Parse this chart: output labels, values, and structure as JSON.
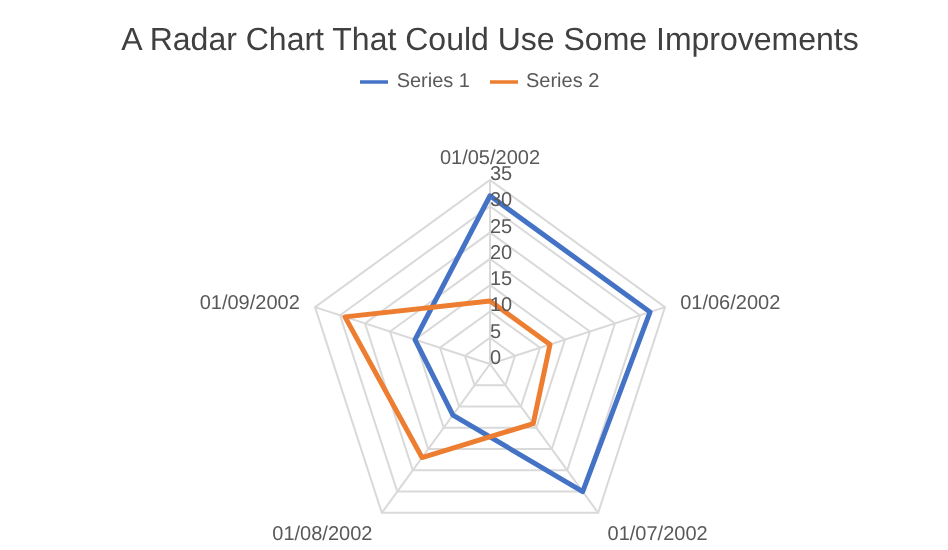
{
  "chart_data": {
    "type": "radar",
    "title": "A Radar Chart That Could Use Some Improvements",
    "categories": [
      "01/05/2002",
      "01/06/2002",
      "01/07/2002",
      "01/08/2002",
      "01/09/2002"
    ],
    "series": [
      {
        "name": "Series 1",
        "color": "#4472c4",
        "values": [
          32,
          32,
          30,
          12,
          15
        ]
      },
      {
        "name": "Series 2",
        "color": "#ed7d31",
        "values": [
          12,
          12,
          14,
          22,
          29
        ]
      }
    ],
    "ylim": [
      0,
      35
    ],
    "yticks": [
      0,
      5,
      10,
      15,
      20,
      25,
      30,
      35
    ],
    "grid": true,
    "legend": "top",
    "marker": "none"
  }
}
